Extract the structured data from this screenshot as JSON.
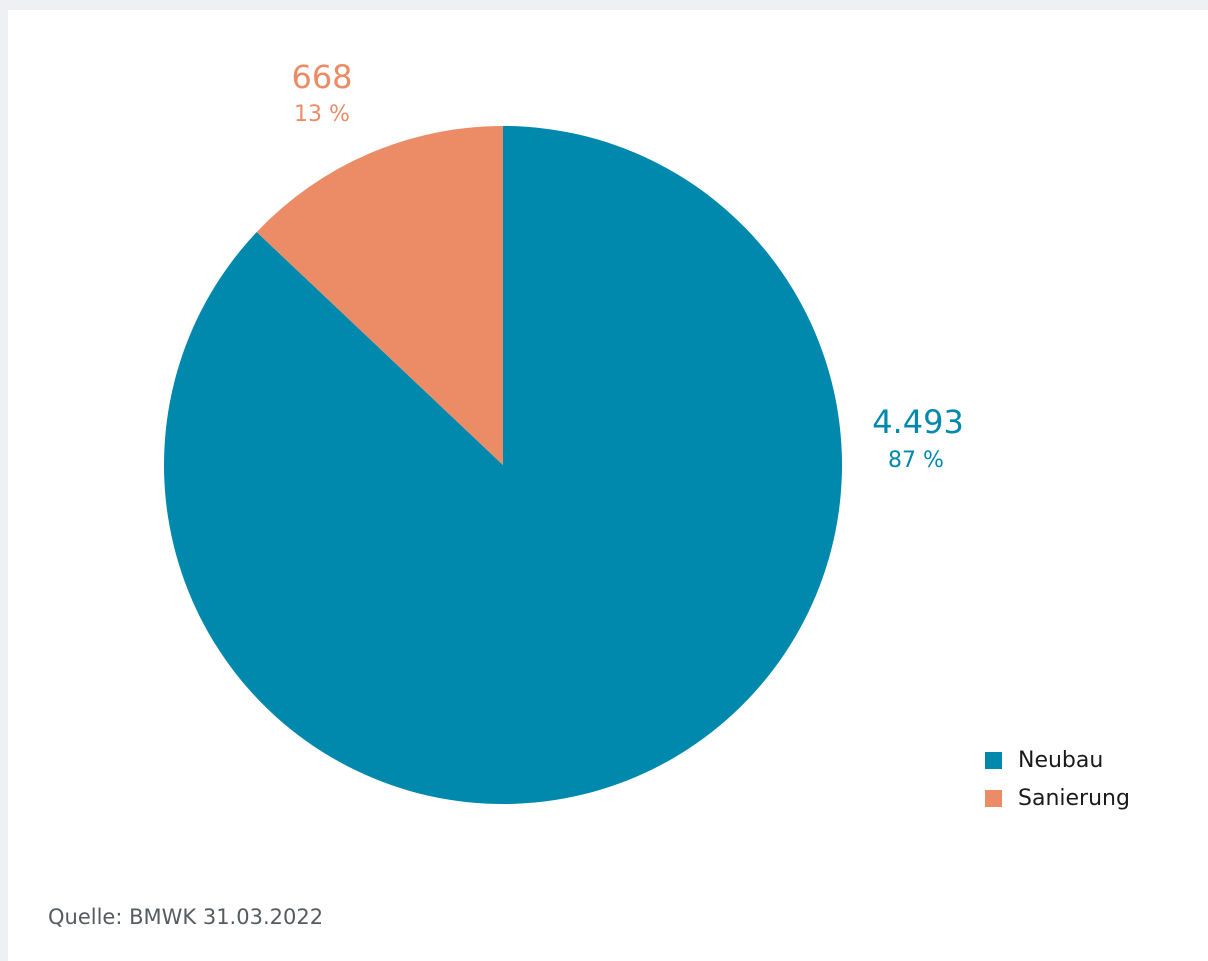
{
  "chart_data": {
    "type": "pie",
    "slices": [
      {
        "name": "Neubau",
        "value": 4493,
        "value_label": "4.493",
        "percent_label": "87 %",
        "color": "#0088ad"
      },
      {
        "name": "Sanierung",
        "value": 668,
        "value_label": "668",
        "percent_label": "13 %",
        "color": "#ec8c66"
      }
    ],
    "start_angle": "12 o'clock",
    "direction": "clockwise",
    "legend": {
      "position": "bottom-right",
      "items": [
        "Neubau",
        "Sanierung"
      ]
    }
  },
  "source": "Quelle: BMWK 31.03.2022"
}
